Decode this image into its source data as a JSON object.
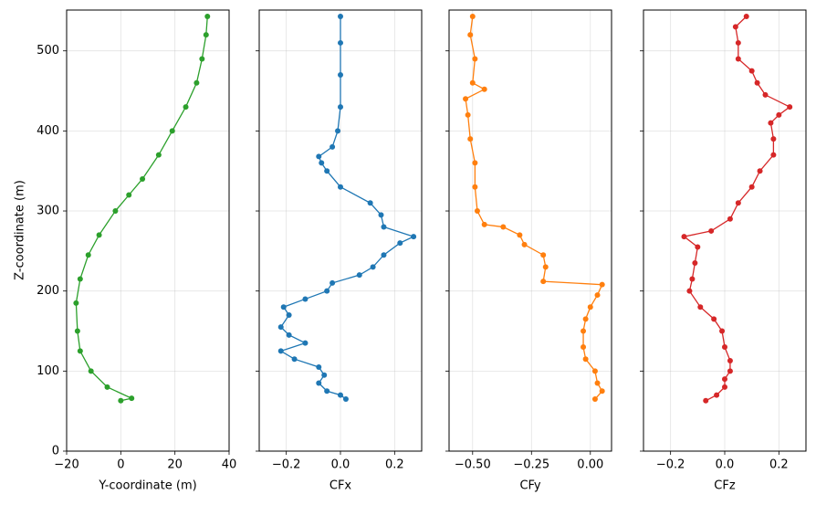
{
  "chart_data": {
    "type": "line",
    "ylabel": "Z-coordinate (m)",
    "ylim": [
      0,
      551
    ],
    "yticks": [
      0,
      100,
      200,
      300,
      400,
      500
    ],
    "grid": true,
    "panels": [
      {
        "xlabel": "Y-coordinate (m)",
        "color": "#2ca02c",
        "xlim": [
          -20,
          40
        ],
        "xticks": [
          {
            "value": -20,
            "label": "−20"
          },
          0,
          20,
          40
        ],
        "x": [
          0,
          4,
          -5,
          -11,
          -15,
          -16,
          -16.5,
          -15,
          -12,
          -8,
          -2,
          3,
          8,
          14,
          19,
          24,
          28,
          30,
          31.5,
          32
        ],
        "z": [
          63,
          66,
          80,
          100,
          125,
          150,
          185,
          215,
          245,
          270,
          300,
          320,
          340,
          370,
          400,
          430,
          460,
          490,
          520,
          543
        ]
      },
      {
        "xlabel": "CFx",
        "color": "#1f77b4",
        "xlim": [
          -0.3,
          0.3
        ],
        "xticks": [
          {
            "value": -0.2,
            "label": "−0.2"
          },
          {
            "value": 0,
            "label": "0.0"
          },
          0.2
        ],
        "x": [
          0.02,
          0.0,
          -0.05,
          -0.08,
          -0.06,
          -0.08,
          -0.17,
          -0.22,
          -0.13,
          -0.19,
          -0.22,
          -0.19,
          -0.21,
          -0.13,
          -0.05,
          -0.03,
          0.07,
          0.12,
          0.16,
          0.22,
          0.27,
          0.16,
          0.15,
          0.11,
          0.0,
          -0.05,
          -0.07,
          -0.08,
          -0.03,
          -0.01,
          0.0,
          0.0,
          0.0,
          0.0
        ],
        "z": [
          65,
          70,
          75,
          85,
          95,
          105,
          115,
          125,
          135,
          145,
          155,
          170,
          180,
          190,
          200,
          210,
          220,
          230,
          245,
          260,
          268,
          280,
          295,
          310,
          330,
          350,
          360,
          368,
          380,
          400,
          430,
          470,
          510,
          543
        ]
      },
      {
        "xlabel": "CFy",
        "color": "#ff7f0e",
        "xlim": [
          -0.6,
          0.09
        ],
        "xticks": [
          {
            "value": -0.5,
            "label": "−0.50"
          },
          {
            "value": -0.25,
            "label": "−0.25"
          },
          {
            "value": 0,
            "label": "0.00"
          }
        ],
        "x": [
          0.02,
          0.05,
          0.03,
          0.02,
          -0.02,
          -0.03,
          -0.03,
          -0.02,
          0.0,
          0.03,
          0.05,
          -0.2,
          -0.19,
          -0.2,
          -0.28,
          -0.3,
          -0.37,
          -0.45,
          -0.48,
          -0.49,
          -0.49,
          -0.51,
          -0.52,
          -0.53,
          -0.45,
          -0.5,
          -0.49,
          -0.51,
          -0.5
        ],
        "z": [
          65,
          75,
          85,
          100,
          115,
          130,
          150,
          165,
          180,
          195,
          208,
          212,
          230,
          245,
          258,
          270,
          280,
          283,
          300,
          330,
          360,
          390,
          420,
          440,
          452,
          460,
          490,
          520,
          543
        ]
      },
      {
        "xlabel": "CFz",
        "color": "#d62728",
        "xlim": [
          -0.3,
          0.3
        ],
        "xticks": [
          {
            "value": -0.2,
            "label": "−0.2"
          },
          {
            "value": 0,
            "label": "0.0"
          },
          0.2
        ],
        "x": [
          -0.07,
          -0.03,
          0.0,
          0.0,
          0.02,
          0.02,
          0.0,
          -0.01,
          -0.04,
          -0.09,
          -0.13,
          -0.12,
          -0.11,
          -0.1,
          -0.15,
          -0.05,
          0.02,
          0.05,
          0.1,
          0.13,
          0.18,
          0.18,
          0.17,
          0.2,
          0.24,
          0.15,
          0.12,
          0.1,
          0.05,
          0.05,
          0.04,
          0.08
        ],
        "z": [
          63,
          70,
          80,
          90,
          100,
          113,
          130,
          150,
          165,
          180,
          200,
          215,
          235,
          255,
          268,
          275,
          290,
          310,
          330,
          350,
          370,
          390,
          410,
          420,
          430,
          445,
          460,
          475,
          490,
          510,
          530,
          543
        ]
      }
    ]
  }
}
